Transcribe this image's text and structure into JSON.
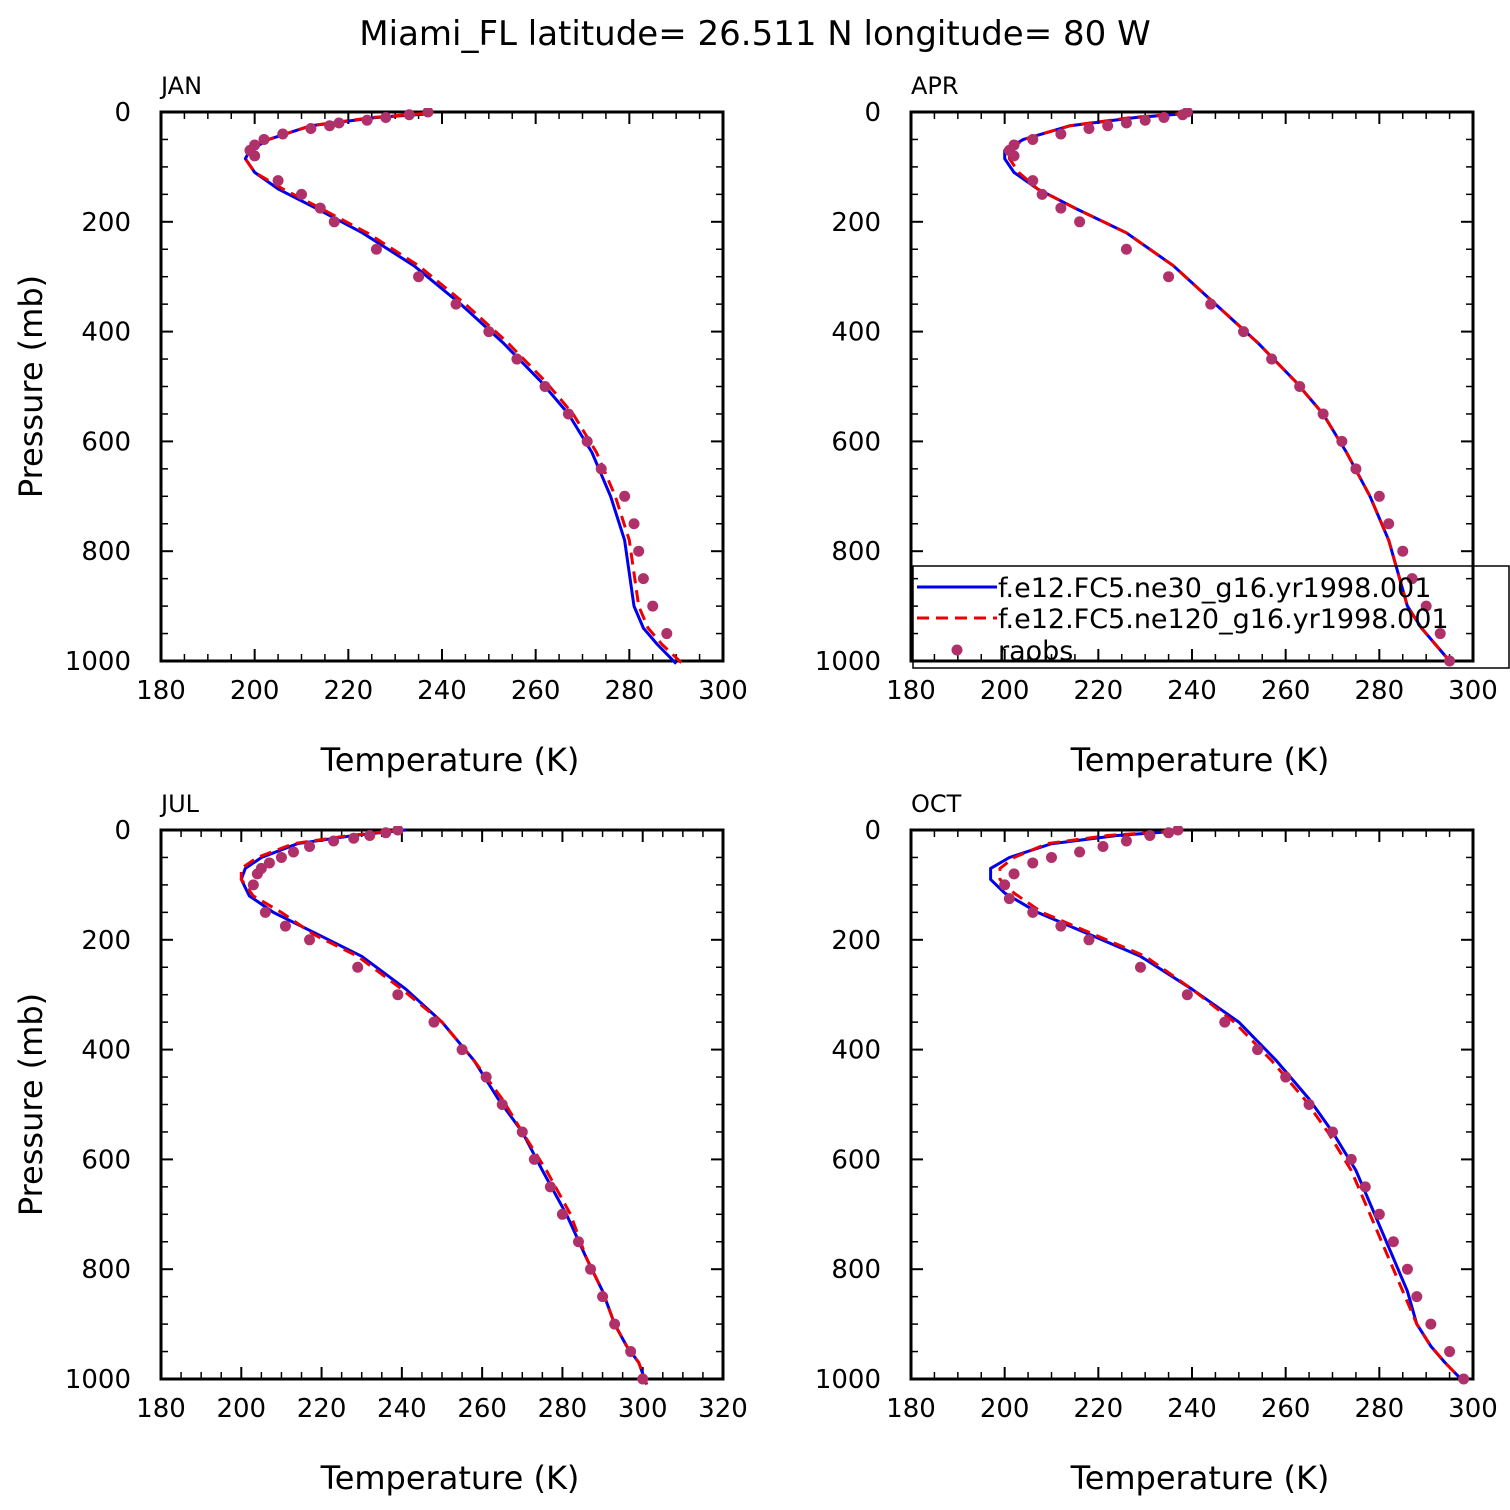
{
  "figure": {
    "title": "Miami_FL  latitude= 26.511 N longitude= 80 W",
    "xlabel": "Temperature (K)",
    "ylabel": "Pressure (mb)"
  },
  "colors": {
    "ne30": "#0000ee",
    "ne120": "#ee0000",
    "raobs": "#b0306a"
  },
  "legend": {
    "placement": "in APR panel, lower part, extending past right edge",
    "entries": [
      {
        "label": "f.e12.FC5.ne30_g16.yr1998.001",
        "style": "solid",
        "color": "#0000ee"
      },
      {
        "label": "f.e12.FC5.ne120_g16.yr1998.001",
        "style": "dashed",
        "color": "#ee0000"
      },
      {
        "label": "raobs",
        "style": "markers",
        "color": "#b0306a"
      }
    ]
  },
  "chart_data": [
    {
      "type": "line",
      "panel": "JAN",
      "xlim": [
        180,
        300
      ],
      "xticks": [
        180,
        200,
        220,
        240,
        260,
        280,
        300
      ],
      "ylim": [
        1000,
        0
      ],
      "yticks": [
        0,
        200,
        400,
        600,
        800,
        1000
      ],
      "series": [
        {
          "name": "f.e12.FC5.ne30_g16.yr1998.001",
          "style": "solid",
          "color": "#0000ee",
          "x": [
            238,
            226,
            212,
            203,
            199,
            198,
            200,
            205,
            213,
            223,
            234,
            244,
            253,
            261,
            267,
            272,
            276,
            279,
            280,
            281,
            283,
            286,
            290
          ],
          "y": [
            3,
            10,
            25,
            50,
            70,
            85,
            110,
            140,
            175,
            220,
            280,
            350,
            420,
            490,
            550,
            620,
            700,
            780,
            840,
            900,
            940,
            970,
            1005
          ]
        },
        {
          "name": "f.e12.FC5.ne120_g16.yr1998.001",
          "style": "dashed",
          "color": "#ee0000",
          "x": [
            236,
            225,
            212,
            203,
            199,
            198,
            200,
            206,
            214,
            224,
            235,
            245,
            254,
            262,
            268,
            273,
            277,
            280,
            281,
            282,
            284,
            287,
            292
          ],
          "y": [
            3,
            10,
            25,
            50,
            70,
            85,
            110,
            140,
            175,
            220,
            280,
            350,
            420,
            490,
            550,
            620,
            700,
            780,
            840,
            900,
            940,
            970,
            1010
          ]
        },
        {
          "name": "raobs",
          "style": "markers",
          "color": "#b0306a",
          "x": [
            237,
            233,
            228,
            224,
            218,
            216,
            212,
            206,
            202,
            200,
            199,
            200,
            205,
            210,
            214,
            217,
            226,
            235,
            243,
            250,
            256,
            262,
            267,
            271,
            274,
            279,
            281,
            282,
            283,
            285,
            288
          ],
          "y": [
            0,
            5,
            10,
            15,
            20,
            25,
            30,
            40,
            50,
            60,
            70,
            80,
            125,
            150,
            175,
            200,
            250,
            300,
            350,
            400,
            450,
            500,
            550,
            600,
            650,
            700,
            750,
            800,
            850,
            900,
            950
          ]
        }
      ]
    },
    {
      "type": "line",
      "panel": "APR",
      "xlim": [
        180,
        300
      ],
      "xticks": [
        180,
        200,
        220,
        240,
        260,
        280,
        300
      ],
      "ylim": [
        1000,
        0
      ],
      "yticks": [
        0,
        200,
        400,
        600,
        800,
        1000
      ],
      "series": [
        {
          "name": "f.e12.FC5.ne30_g16.yr1998.001",
          "style": "solid",
          "color": "#0000ee",
          "x": [
            240,
            228,
            214,
            204,
            200,
            200,
            202,
            207,
            215,
            226,
            236,
            245,
            254,
            262,
            268,
            273,
            278,
            282,
            284,
            286,
            289,
            292,
            295
          ],
          "y": [
            2,
            10,
            25,
            50,
            70,
            85,
            110,
            140,
            175,
            220,
            280,
            350,
            420,
            490,
            550,
            620,
            700,
            780,
            840,
            900,
            940,
            970,
            1000
          ]
        },
        {
          "name": "f.e12.FC5.ne120_g16.yr1998.001",
          "style": "dashed",
          "color": "#ee0000",
          "x": [
            239,
            227,
            214,
            204,
            201,
            201,
            203,
            207,
            215,
            226,
            236,
            245,
            254,
            262,
            268,
            273,
            278,
            282,
            284,
            286,
            289,
            292,
            295
          ],
          "y": [
            2,
            10,
            25,
            50,
            70,
            85,
            110,
            140,
            175,
            220,
            280,
            350,
            420,
            490,
            550,
            620,
            700,
            780,
            840,
            900,
            940,
            970,
            1000
          ]
        },
        {
          "name": "raobs",
          "style": "markers",
          "color": "#b0306a",
          "x": [
            239,
            238,
            234,
            230,
            226,
            222,
            218,
            212,
            206,
            202,
            201,
            202,
            206,
            208,
            212,
            216,
            226,
            235,
            244,
            251,
            257,
            263,
            268,
            272,
            275,
            280,
            282,
            285,
            287,
            290,
            293,
            295
          ],
          "y": [
            0,
            5,
            10,
            15,
            20,
            25,
            30,
            40,
            50,
            60,
            70,
            80,
            125,
            150,
            175,
            200,
            250,
            300,
            350,
            400,
            450,
            500,
            550,
            600,
            650,
            700,
            750,
            800,
            850,
            900,
            950,
            1000
          ]
        }
      ]
    },
    {
      "type": "line",
      "panel": "JUL",
      "xlim": [
        180,
        320
      ],
      "xticks": [
        180,
        200,
        220,
        240,
        260,
        280,
        300,
        320
      ],
      "ylim": [
        1000,
        0
      ],
      "yticks": [
        0,
        200,
        400,
        600,
        800,
        1000
      ],
      "series": [
        {
          "name": "f.e12.FC5.ne30_g16.yr1998.001",
          "style": "solid",
          "color": "#0000ee",
          "x": [
            241,
            228,
            214,
            205,
            201,
            200,
            202,
            208,
            219,
            230,
            241,
            250,
            258,
            264,
            270,
            275,
            281,
            286,
            290,
            293,
            296,
            299,
            301
          ],
          "y": [
            0,
            10,
            25,
            50,
            70,
            90,
            120,
            150,
            190,
            230,
            290,
            350,
            420,
            490,
            550,
            620,
            700,
            780,
            840,
            900,
            940,
            970,
            1010
          ]
        },
        {
          "name": "f.e12.FC5.ne120_g16.yr1998.001",
          "style": "dashed",
          "color": "#ee0000",
          "x": [
            240,
            227,
            213,
            204,
            200,
            200,
            203,
            210,
            218,
            229,
            240,
            250,
            258,
            265,
            270,
            276,
            282,
            286,
            290,
            293,
            296,
            299,
            301
          ],
          "y": [
            0,
            10,
            25,
            50,
            70,
            90,
            120,
            150,
            190,
            230,
            290,
            350,
            420,
            490,
            550,
            620,
            700,
            780,
            840,
            900,
            940,
            970,
            1010
          ]
        },
        {
          "name": "raobs",
          "style": "markers",
          "color": "#b0306a",
          "x": [
            239,
            236,
            232,
            228,
            223,
            217,
            213,
            210,
            207,
            205,
            204,
            203,
            206,
            211,
            217,
            229,
            239,
            248,
            255,
            261,
            265,
            270,
            273,
            277,
            280,
            284,
            287,
            290,
            293,
            297,
            300
          ],
          "y": [
            0,
            5,
            10,
            15,
            20,
            30,
            40,
            50,
            60,
            70,
            80,
            100,
            150,
            175,
            200,
            250,
            300,
            350,
            400,
            450,
            500,
            550,
            600,
            650,
            700,
            750,
            800,
            850,
            900,
            950,
            1000
          ]
        }
      ]
    },
    {
      "type": "line",
      "panel": "OCT",
      "xlim": [
        180,
        300
      ],
      "xticks": [
        180,
        200,
        220,
        240,
        260,
        280,
        300
      ],
      "ylim": [
        1000,
        0
      ],
      "yticks": [
        0,
        200,
        400,
        600,
        800,
        1000
      ],
      "series": [
        {
          "name": "f.e12.FC5.ne30_g16.yr1998.001",
          "style": "solid",
          "color": "#0000ee",
          "x": [
            237,
            224,
            210,
            201,
            197,
            197,
            200,
            207,
            218,
            229,
            240,
            250,
            258,
            265,
            270,
            275,
            279,
            283,
            286,
            288,
            291,
            294,
            298
          ],
          "y": [
            2,
            10,
            25,
            50,
            70,
            90,
            115,
            150,
            190,
            230,
            290,
            350,
            420,
            490,
            550,
            620,
            700,
            780,
            840,
            900,
            940,
            970,
            1005
          ]
        },
        {
          "name": "f.e12.FC5.ne120_g16.yr1998.001",
          "style": "dashed",
          "color": "#ee0000",
          "x": [
            236,
            222,
            209,
            202,
            199,
            199,
            202,
            208,
            219,
            230,
            240,
            249,
            257,
            264,
            269,
            274,
            278,
            282,
            285,
            288,
            291,
            294,
            298
          ],
          "y": [
            2,
            10,
            25,
            50,
            70,
            90,
            115,
            150,
            190,
            230,
            290,
            350,
            420,
            490,
            550,
            620,
            700,
            780,
            840,
            900,
            940,
            970,
            1005
          ]
        },
        {
          "name": "raobs",
          "style": "markers",
          "color": "#b0306a",
          "x": [
            237,
            235,
            231,
            226,
            221,
            216,
            210,
            206,
            202,
            200,
            201,
            206,
            212,
            218,
            229,
            239,
            247,
            254,
            260,
            265,
            270,
            274,
            277,
            280,
            283,
            286,
            288,
            291,
            295,
            298
          ],
          "y": [
            0,
            5,
            10,
            20,
            30,
            40,
            50,
            60,
            80,
            100,
            125,
            150,
            175,
            200,
            250,
            300,
            350,
            400,
            450,
            500,
            550,
            600,
            650,
            700,
            750,
            800,
            850,
            900,
            950,
            1000
          ]
        }
      ]
    }
  ]
}
